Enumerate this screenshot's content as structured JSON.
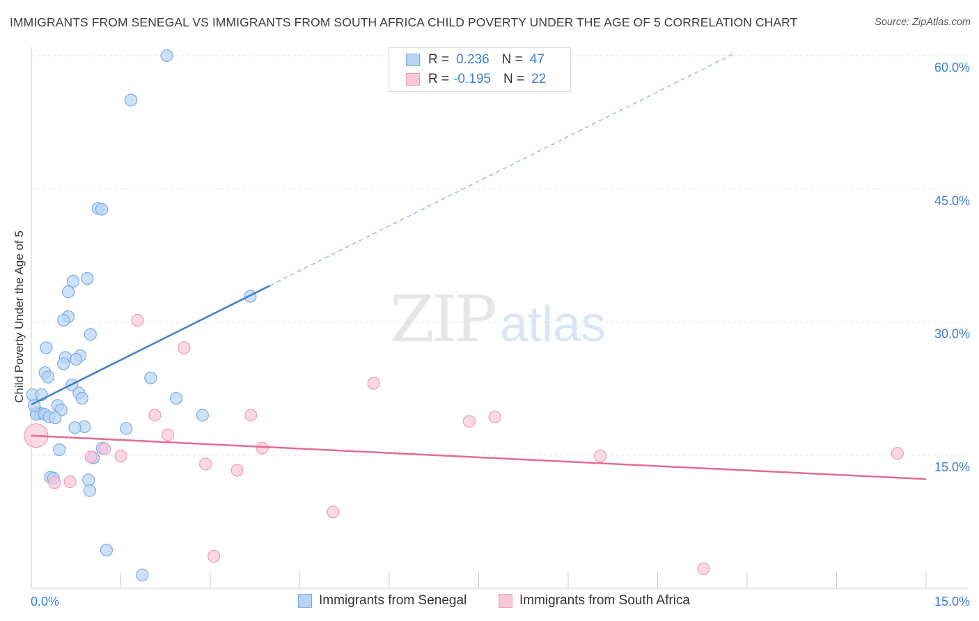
{
  "title": "IMMIGRANTS FROM SENEGAL VS IMMIGRANTS FROM SOUTH AFRICA CHILD POVERTY UNDER THE AGE OF 5 CORRELATION CHART",
  "source": "Source: ZipAtlas.com",
  "watermark": {
    "zip": "ZIP",
    "atlas": "atlas"
  },
  "colors": {
    "senegal_fill": "#b8d4f5",
    "senegal_stroke": "#7aaae4",
    "senegal_line": "#3b7fd4",
    "sa_fill": "#f8c8d8",
    "sa_stroke": "#ec9bb6",
    "sa_line": "#e36b95",
    "axis_label": "#3b7fd4",
    "grid": "#dddddd"
  },
  "legend": {
    "rows": [
      {
        "r_label": "R =",
        "r_value": "0.236",
        "n_label": "N =",
        "n_value": "47"
      },
      {
        "r_label": "R =",
        "r_value": "-0.195",
        "n_label": "N =",
        "n_value": "22"
      }
    ]
  },
  "chart_data": {
    "type": "scatter",
    "xlabel": "",
    "ylabel": "Child Poverty Under the Age of 5",
    "xlim": [
      0,
      15
    ],
    "ylim": [
      0,
      60
    ],
    "x_tick_labels": [
      "0.0%",
      "15.0%"
    ],
    "y_ticks": [
      15,
      30,
      45,
      60
    ],
    "y_tick_labels": [
      "15.0%",
      "30.0%",
      "45.0%",
      "60.0%"
    ],
    "grid": true,
    "series": [
      {
        "name": "Immigrants from Senegal",
        "points": [
          [
            2.27,
            60.0
          ],
          [
            1.67,
            55.0
          ],
          [
            1.12,
            42.8
          ],
          [
            1.18,
            42.7
          ],
          [
            0.94,
            34.9
          ],
          [
            0.7,
            34.6
          ],
          [
            0.62,
            33.4
          ],
          [
            3.67,
            32.9
          ],
          [
            0.62,
            30.6
          ],
          [
            0.54,
            30.2
          ],
          [
            0.99,
            28.6
          ],
          [
            0.25,
            27.1
          ],
          [
            0.57,
            26.0
          ],
          [
            0.82,
            26.2
          ],
          [
            0.75,
            25.8
          ],
          [
            0.54,
            25.3
          ],
          [
            0.23,
            24.3
          ],
          [
            0.28,
            23.8
          ],
          [
            2.0,
            23.7
          ],
          [
            0.68,
            22.9
          ],
          [
            0.8,
            22.0
          ],
          [
            0.85,
            21.4
          ],
          [
            2.43,
            21.4
          ],
          [
            0.02,
            21.8
          ],
          [
            0.17,
            21.8
          ],
          [
            0.44,
            20.6
          ],
          [
            0.5,
            20.1
          ],
          [
            0.1,
            19.8
          ],
          [
            0.16,
            19.7
          ],
          [
            0.08,
            19.6
          ],
          [
            0.22,
            19.6
          ],
          [
            0.3,
            19.3
          ],
          [
            0.4,
            19.2
          ],
          [
            2.87,
            19.5
          ],
          [
            0.89,
            18.2
          ],
          [
            0.73,
            18.1
          ],
          [
            1.59,
            18.0
          ],
          [
            1.19,
            15.8
          ],
          [
            0.47,
            15.6
          ],
          [
            1.04,
            14.7
          ],
          [
            0.32,
            12.5
          ],
          [
            0.37,
            12.4
          ],
          [
            0.96,
            12.2
          ],
          [
            0.98,
            11.0
          ],
          [
            1.26,
            4.3
          ],
          [
            1.86,
            1.5
          ],
          [
            0.05,
            20.6
          ]
        ]
      },
      {
        "name": "Immigrants from South Africa",
        "points": [
          [
            0.08,
            17.2
          ],
          [
            1.78,
            30.2
          ],
          [
            2.56,
            27.1
          ],
          [
            5.74,
            23.1
          ],
          [
            2.07,
            19.5
          ],
          [
            3.68,
            19.5
          ],
          [
            7.77,
            19.3
          ],
          [
            7.34,
            18.8
          ],
          [
            2.29,
            17.3
          ],
          [
            1.23,
            15.7
          ],
          [
            3.87,
            15.8
          ],
          [
            1.0,
            14.8
          ],
          [
            1.5,
            14.9
          ],
          [
            9.54,
            14.9
          ],
          [
            14.52,
            15.2
          ],
          [
            2.92,
            14.0
          ],
          [
            3.45,
            13.3
          ],
          [
            0.39,
            11.9
          ],
          [
            0.65,
            12.0
          ],
          [
            5.06,
            8.6
          ],
          [
            3.06,
            3.6
          ],
          [
            11.27,
            2.2
          ]
        ]
      }
    ],
    "trend_lines": [
      {
        "series": "Immigrants from Senegal",
        "solid": [
          [
            0.0,
            20.7
          ],
          [
            4.0,
            34.1
          ]
        ],
        "dashed": [
          [
            4.0,
            34.1
          ],
          [
            11.8,
            60.3
          ]
        ]
      },
      {
        "series": "Immigrants from South Africa",
        "solid": [
          [
            0.0,
            17.2
          ],
          [
            15.0,
            12.3
          ]
        ]
      }
    ]
  }
}
